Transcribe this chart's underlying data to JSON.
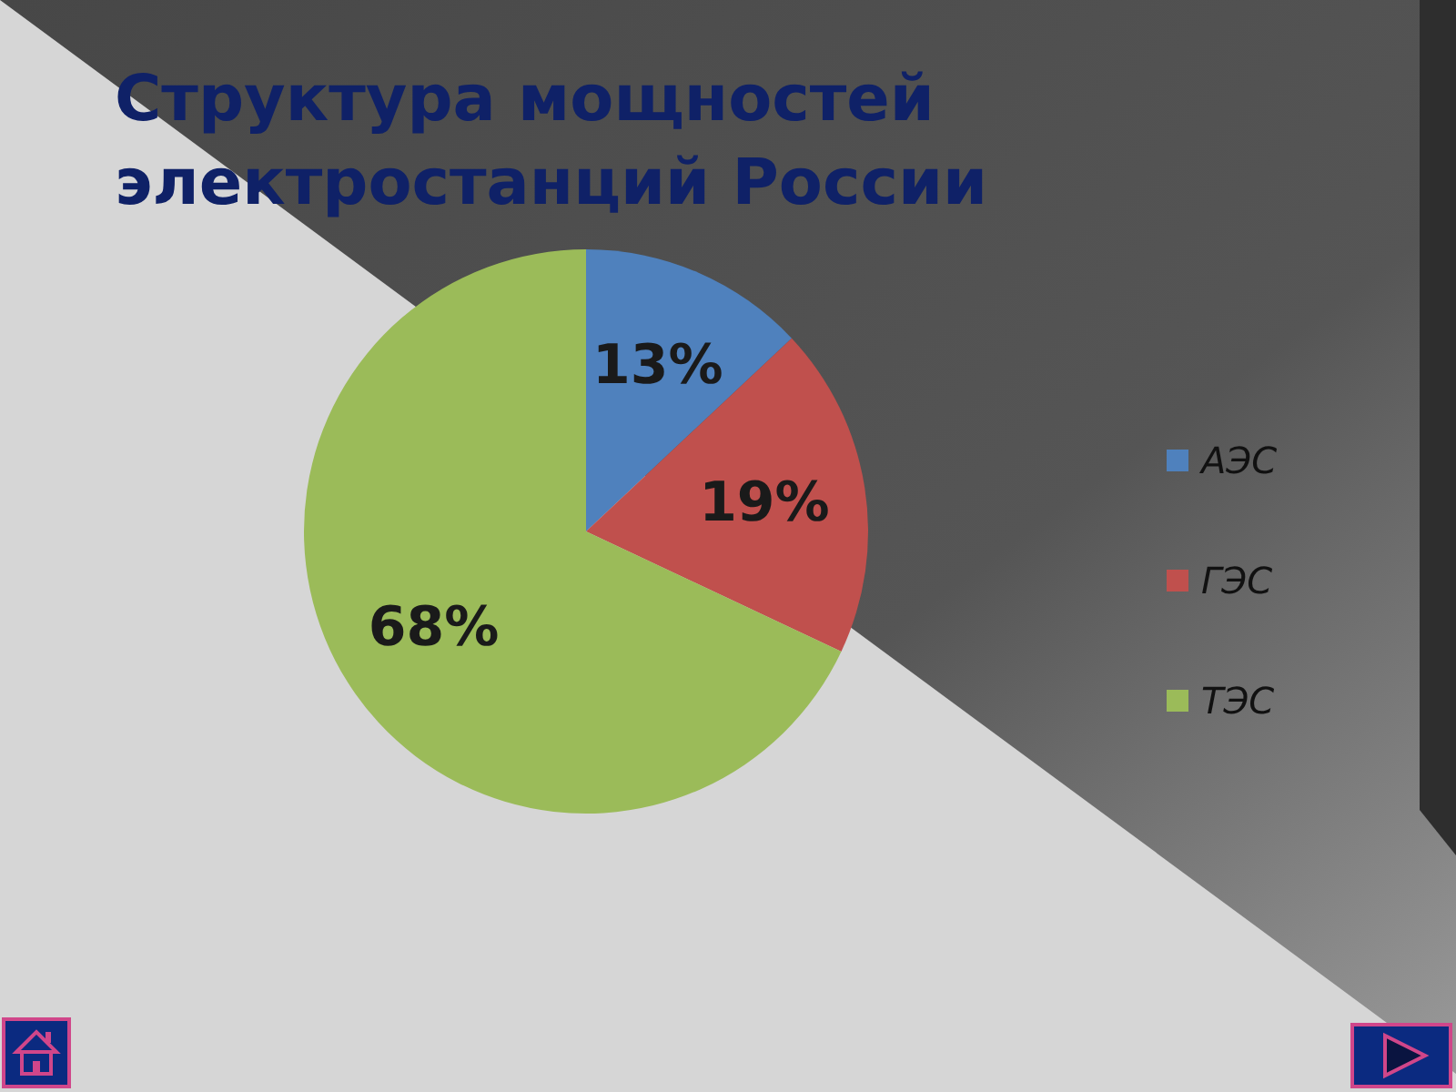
{
  "chart_data": {
    "type": "pie",
    "title": "Структура мощностей\nэлектростанций России",
    "categories": [
      "АЭС",
      "ГЭС",
      "ТЭС"
    ],
    "values": [
      13,
      19,
      68
    ],
    "colors": [
      "#4f81bd",
      "#c0504d",
      "#9bbb59"
    ],
    "value_labels": [
      "13%",
      "19%",
      "68%"
    ],
    "legend": "right"
  }
}
